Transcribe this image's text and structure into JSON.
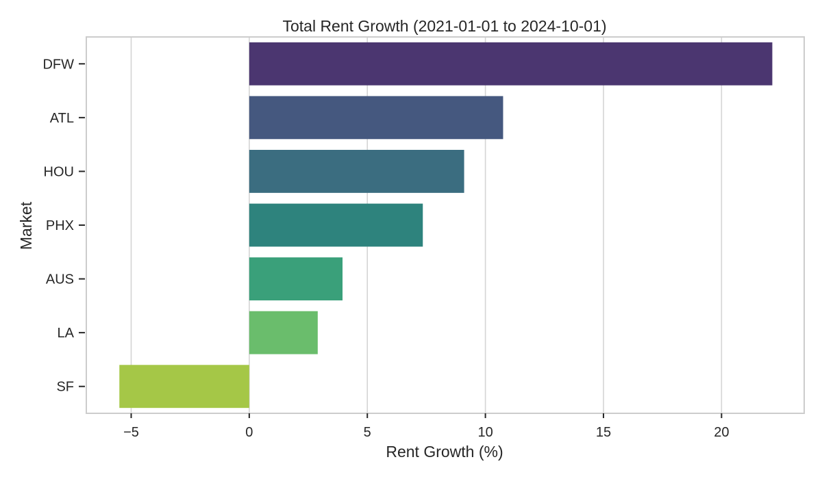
{
  "chart_data": {
    "type": "bar",
    "orientation": "horizontal",
    "title": "Total Rent Growth (2021-01-01 to 2024-10-01)",
    "xlabel": "Rent Growth (%)",
    "ylabel": "Market",
    "categories": [
      "DFW",
      "ATL",
      "HOU",
      "PHX",
      "AUS",
      "LA",
      "SF"
    ],
    "values": [
      22.15,
      10.75,
      9.1,
      7.35,
      3.95,
      2.9,
      -5.5
    ],
    "colors": [
      "#4b3670",
      "#45587f",
      "#3b6d80",
      "#2e837d",
      "#3aa07a",
      "#6abd6c",
      "#a5c747"
    ],
    "xlim": [
      -6.9,
      23.5
    ],
    "xticks": [
      -5,
      0,
      5,
      10,
      15,
      20
    ],
    "xtick_labels": [
      "−5",
      "0",
      "5",
      "10",
      "15",
      "20"
    ],
    "grid": "vertical",
    "legend": "none"
  }
}
